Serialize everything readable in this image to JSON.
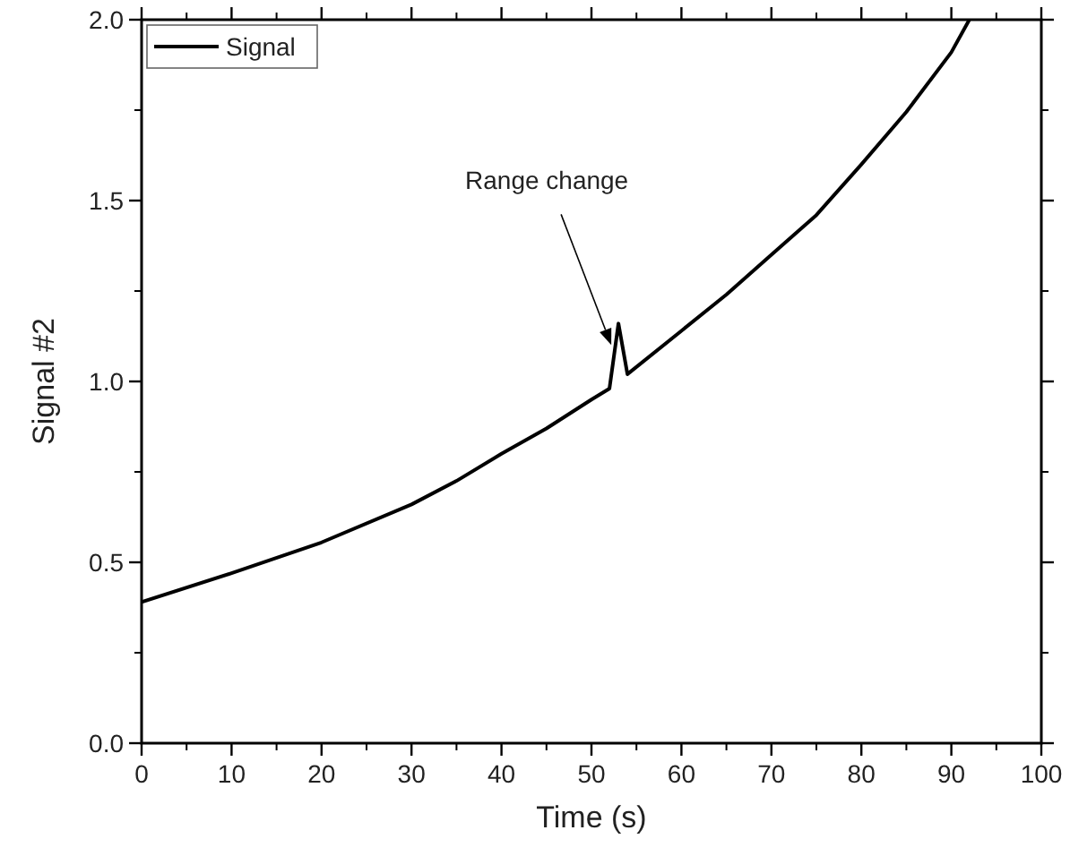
{
  "chart_data": {
    "type": "line",
    "xlabel": "Time (s)",
    "ylabel": "Signal #2",
    "xlim": [
      0,
      100
    ],
    "xticks": [
      0,
      10,
      20,
      30,
      40,
      50,
      60,
      70,
      80,
      90,
      100
    ],
    "ylim": [
      0,
      2.0
    ],
    "yticks": [
      {
        "value": 0,
        "label": "0.0"
      },
      {
        "value": 0.5,
        "label": "0.5"
      },
      {
        "value": 1,
        "label": "1.0"
      },
      {
        "value": 1.5,
        "label": "1.5"
      },
      {
        "value": 2,
        "label": "2.0"
      }
    ],
    "grid": false,
    "legend": "top left",
    "marker": "none",
    "line_style": "solid",
    "annotations": [
      {
        "text": "Range change",
        "x": 53,
        "y": 1.16
      }
    ],
    "series": [
      {
        "name": "Signal",
        "color": "#000000",
        "x": [
          0,
          10,
          20,
          30,
          35,
          40,
          45,
          50,
          52,
          53,
          54,
          60,
          65,
          70,
          75,
          80,
          85,
          90,
          92
        ],
        "values": [
          0.39,
          0.47,
          0.555,
          0.66,
          0.725,
          0.8,
          0.87,
          0.95,
          0.98,
          1.16,
          1.02,
          1.14,
          1.24,
          1.35,
          1.46,
          1.6,
          1.745,
          1.91,
          2.0
        ]
      }
    ]
  }
}
